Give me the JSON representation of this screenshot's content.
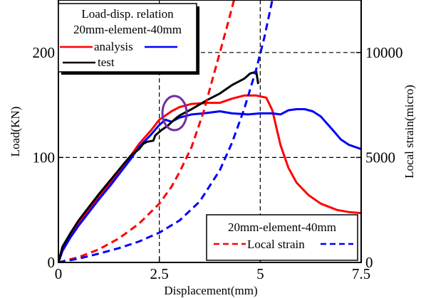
{
  "chart_data": {
    "type": "line",
    "xlabel": "Displacement(mm)",
    "ylabel": "Load(KN)",
    "y2label": "Local strain(micro)",
    "xlim": [
      0,
      7.5
    ],
    "ylim": [
      0,
      250
    ],
    "y2lim": [
      0,
      12500
    ],
    "x_ticks": [
      {
        "value": 0,
        "label": "0"
      },
      {
        "value": 2.5,
        "label": "2.5"
      },
      {
        "value": 5,
        "label": "5"
      },
      {
        "value": 7.5,
        "label": "7.5"
      }
    ],
    "y_ticks": [
      {
        "value": 0,
        "label": "0"
      },
      {
        "value": 100,
        "label": "100"
      },
      {
        "value": 200,
        "label": "200"
      }
    ],
    "y2_ticks": [
      {
        "value": 0,
        "label": "0"
      },
      {
        "value": 5000,
        "label": "5000"
      },
      {
        "value": 10000,
        "label": "10000"
      }
    ],
    "grid": "dashed",
    "legend_top": {
      "title_line1": "Load-disp. relation",
      "title_line2": "20mm-element-40mm",
      "entry_analysis": "analysis",
      "entry_test": "test"
    },
    "legend_bottom": {
      "title": "20mm-element-40mm",
      "entry_local_strain": "Local strain"
    },
    "annotation": "circle",
    "colors": {
      "analysis_20mm": "#ff0000",
      "analysis_40mm": "#0000ff",
      "test": "#000000",
      "circle": "#7030a0"
    },
    "series": [
      {
        "key": "load_20mm",
        "axis": "left",
        "style": "solid",
        "color": "#ff0000",
        "points": [
          [
            0,
            0
          ],
          [
            0.1,
            12
          ],
          [
            0.3,
            26
          ],
          [
            0.5,
            37
          ],
          [
            0.8,
            52
          ],
          [
            1.0,
            62
          ],
          [
            1.3,
            77
          ],
          [
            1.5,
            87
          ],
          [
            1.8,
            102
          ],
          [
            2.0,
            113
          ],
          [
            2.3,
            126
          ],
          [
            2.5,
            136
          ],
          [
            2.8,
            144
          ],
          [
            3.0,
            148
          ],
          [
            3.3,
            151
          ],
          [
            3.7,
            152
          ],
          [
            4.0,
            152
          ],
          [
            4.3,
            156
          ],
          [
            4.6,
            159
          ],
          [
            4.9,
            159
          ],
          [
            5.15,
            157
          ],
          [
            5.3,
            145
          ],
          [
            5.5,
            112
          ],
          [
            5.7,
            90
          ],
          [
            5.9,
            76
          ],
          [
            6.2,
            64
          ],
          [
            6.5,
            56
          ],
          [
            6.9,
            50
          ],
          [
            7.2,
            48
          ],
          [
            7.5,
            47
          ]
        ]
      },
      {
        "key": "load_40mm",
        "axis": "left",
        "style": "solid",
        "color": "#0000ff",
        "points": [
          [
            0,
            0
          ],
          [
            0.1,
            11
          ],
          [
            0.3,
            24
          ],
          [
            0.5,
            35
          ],
          [
            0.8,
            50
          ],
          [
            1.0,
            60
          ],
          [
            1.3,
            74
          ],
          [
            1.5,
            84
          ],
          [
            1.8,
            99
          ],
          [
            2.0,
            110
          ],
          [
            2.3,
            122
          ],
          [
            2.5,
            131
          ],
          [
            2.65,
            136
          ],
          [
            2.8,
            134
          ],
          [
            3.0,
            138
          ],
          [
            3.3,
            141
          ],
          [
            3.6,
            142
          ],
          [
            4.0,
            144
          ],
          [
            4.3,
            142
          ],
          [
            4.7,
            141
          ],
          [
            5.0,
            142
          ],
          [
            5.3,
            142
          ],
          [
            5.5,
            141
          ],
          [
            5.7,
            145
          ],
          [
            5.9,
            146
          ],
          [
            6.1,
            146
          ],
          [
            6.3,
            144
          ],
          [
            6.5,
            139
          ],
          [
            6.8,
            126
          ],
          [
            7.0,
            117
          ],
          [
            7.2,
            112
          ],
          [
            7.5,
            108
          ]
        ]
      },
      {
        "key": "test",
        "axis": "left",
        "style": "solid",
        "color": "#000000",
        "points": [
          [
            0,
            0
          ],
          [
            0.1,
            15
          ],
          [
            0.3,
            28
          ],
          [
            0.5,
            40
          ],
          [
            0.8,
            55
          ],
          [
            1.0,
            65
          ],
          [
            1.3,
            79
          ],
          [
            1.6,
            93
          ],
          [
            1.8,
            102
          ],
          [
            2.0,
            108
          ],
          [
            2.1,
            113
          ],
          [
            2.2,
            115
          ],
          [
            2.35,
            116
          ],
          [
            2.4,
            121
          ],
          [
            2.55,
            126
          ],
          [
            2.7,
            130
          ],
          [
            2.9,
            137
          ],
          [
            3.0,
            140
          ],
          [
            3.3,
            146
          ],
          [
            3.7,
            155
          ],
          [
            4.0,
            161
          ],
          [
            4.3,
            169
          ],
          [
            4.6,
            175
          ],
          [
            4.75,
            180
          ],
          [
            4.85,
            181
          ],
          [
            4.9,
            182
          ],
          [
            4.95,
            170
          ]
        ]
      },
      {
        "key": "strain_20mm",
        "axis": "right",
        "style": "dashed",
        "color": "#ff0000",
        "points": [
          [
            0,
            0
          ],
          [
            0.5,
            250
          ],
          [
            1.0,
            620
          ],
          [
            1.5,
            1150
          ],
          [
            2.0,
            1850
          ],
          [
            2.5,
            2800
          ],
          [
            2.8,
            3600
          ],
          [
            3.0,
            4300
          ],
          [
            3.3,
            5500
          ],
          [
            3.6,
            7200
          ],
          [
            3.8,
            8600
          ],
          [
            4.0,
            10000
          ],
          [
            4.2,
            11400
          ],
          [
            4.35,
            12500
          ]
        ]
      },
      {
        "key": "strain_40mm",
        "axis": "right",
        "style": "dashed",
        "color": "#0000ff",
        "points": [
          [
            0,
            0
          ],
          [
            0.5,
            180
          ],
          [
            1.0,
            420
          ],
          [
            1.5,
            680
          ],
          [
            2.0,
            1000
          ],
          [
            2.5,
            1420
          ],
          [
            3.0,
            2000
          ],
          [
            3.5,
            2900
          ],
          [
            4.0,
            4400
          ],
          [
            4.3,
            5700
          ],
          [
            4.6,
            7300
          ],
          [
            4.9,
            9200
          ],
          [
            5.1,
            10700
          ],
          [
            5.3,
            12500
          ]
        ]
      }
    ]
  }
}
